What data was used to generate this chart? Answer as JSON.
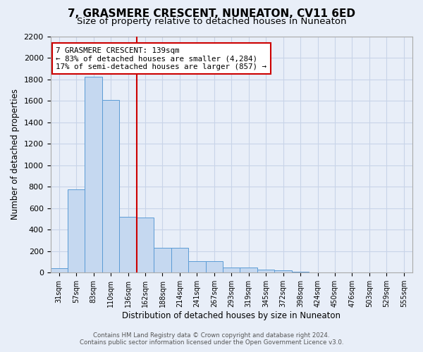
{
  "title": "7, GRASMERE CRESCENT, NUNEATON, CV11 6ED",
  "subtitle": "Size of property relative to detached houses in Nuneaton",
  "xlabel": "Distribution of detached houses by size in Nuneaton",
  "ylabel": "Number of detached properties",
  "bin_labels": [
    "31sqm",
    "57sqm",
    "83sqm",
    "110sqm",
    "136sqm",
    "162sqm",
    "188sqm",
    "214sqm",
    "241sqm",
    "267sqm",
    "293sqm",
    "319sqm",
    "345sqm",
    "372sqm",
    "398sqm",
    "424sqm",
    "450sqm",
    "476sqm",
    "503sqm",
    "529sqm",
    "555sqm"
  ],
  "bar_values": [
    40,
    775,
    1820,
    1610,
    520,
    515,
    230,
    230,
    105,
    105,
    50,
    48,
    30,
    20,
    5,
    3,
    2,
    1,
    0,
    0,
    0
  ],
  "bar_color": "#c5d8f0",
  "bar_edge_color": "#5b9bd5",
  "grid_color": "#c8d4e8",
  "vline_pos": 4.5,
  "vline_color": "#cc0000",
  "annotation_text": "7 GRASMERE CRESCENT: 139sqm\n← 83% of detached houses are smaller (4,284)\n17% of semi-detached houses are larger (857) →",
  "annotation_box_color": "#ffffff",
  "annotation_box_edge": "#cc0000",
  "ylim": [
    0,
    2200
  ],
  "yticks": [
    0,
    200,
    400,
    600,
    800,
    1000,
    1200,
    1400,
    1600,
    1800,
    2000,
    2200
  ],
  "footer_text": "Contains HM Land Registry data © Crown copyright and database right 2024.\nContains public sector information licensed under the Open Government Licence v3.0.",
  "bg_color": "#e8eef8",
  "plot_bg_color": "#e8eef8",
  "title_fontsize": 11,
  "subtitle_fontsize": 9.5
}
